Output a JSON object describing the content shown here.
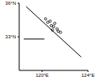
{
  "chart_data": {
    "type": "scatter",
    "xlim": [
      118,
      124
    ],
    "ylim": [
      30,
      36
    ],
    "xticks": [
      {
        "value": 120,
        "label": "120°E"
      },
      {
        "value": 124,
        "label": "124°E"
      }
    ],
    "yticks": [
      {
        "value": 33,
        "label": "33°N"
      },
      {
        "value": 36,
        "label": "36°N"
      }
    ],
    "grid": false,
    "series": [
      {
        "type": "line",
        "color": "#000000",
        "line_style": "solid",
        "x": [
          118.6,
          123.4
        ],
        "values": [
          35.7,
          31.2
        ]
      },
      {
        "type": "line",
        "color": "#000000",
        "line_style": "solid",
        "x": [
          118.4,
          120.2
        ],
        "values": [
          32.8,
          32.8
        ]
      },
      {
        "type": "scatter",
        "color": "#000000",
        "marker": "circle",
        "x": [
          120.3,
          120.5,
          120.7,
          120.8,
          121.0,
          121.1,
          121.3,
          121.4,
          121.6,
          120.9
        ],
        "values": [
          34.6,
          34.3,
          34.4,
          34.0,
          33.9,
          34.2,
          33.7,
          33.5,
          33.4,
          33.6
        ]
      }
    ]
  }
}
